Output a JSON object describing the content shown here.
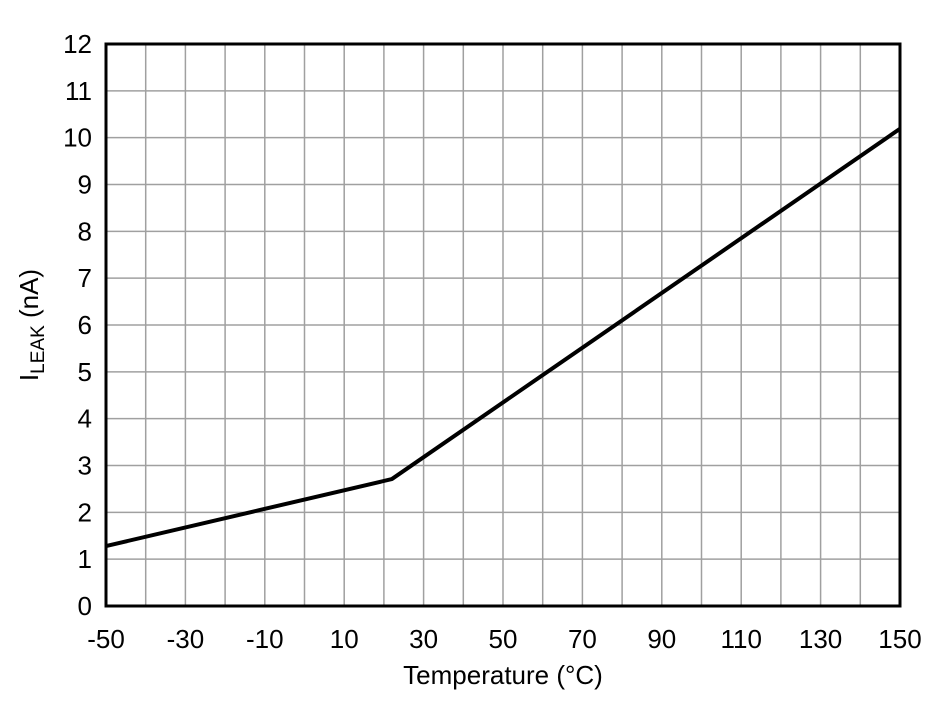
{
  "chart_data": {
    "type": "line",
    "title": "",
    "xlabel": "Temperature (°C)",
    "ylabel_main": "I",
    "ylabel_sub": "LEAK",
    "ylabel_unit": " (nA)",
    "xlim": [
      -50,
      150
    ],
    "ylim": [
      0,
      12
    ],
    "xticks": [
      -50,
      -30,
      -10,
      10,
      30,
      50,
      70,
      90,
      110,
      130,
      150
    ],
    "xtick_labels": [
      "-50",
      "-30",
      "-10",
      "10",
      "30",
      "50",
      "70",
      "90",
      "110",
      "130",
      "150"
    ],
    "yticks": [
      0,
      1,
      2,
      3,
      4,
      5,
      6,
      7,
      8,
      9,
      10,
      11,
      12
    ],
    "ytick_labels": [
      "0",
      "1",
      "2",
      "3",
      "4",
      "5",
      "6",
      "7",
      "8",
      "9",
      "10",
      "11",
      "12"
    ],
    "x_minor_grid_step": 10,
    "grid": true,
    "series": [
      {
        "x": [
          -50,
          22,
          150
        ],
        "y": [
          1.28,
          2.71,
          10.19
        ],
        "color": "#000000"
      }
    ],
    "grid_color": "#a0a0a0"
  }
}
